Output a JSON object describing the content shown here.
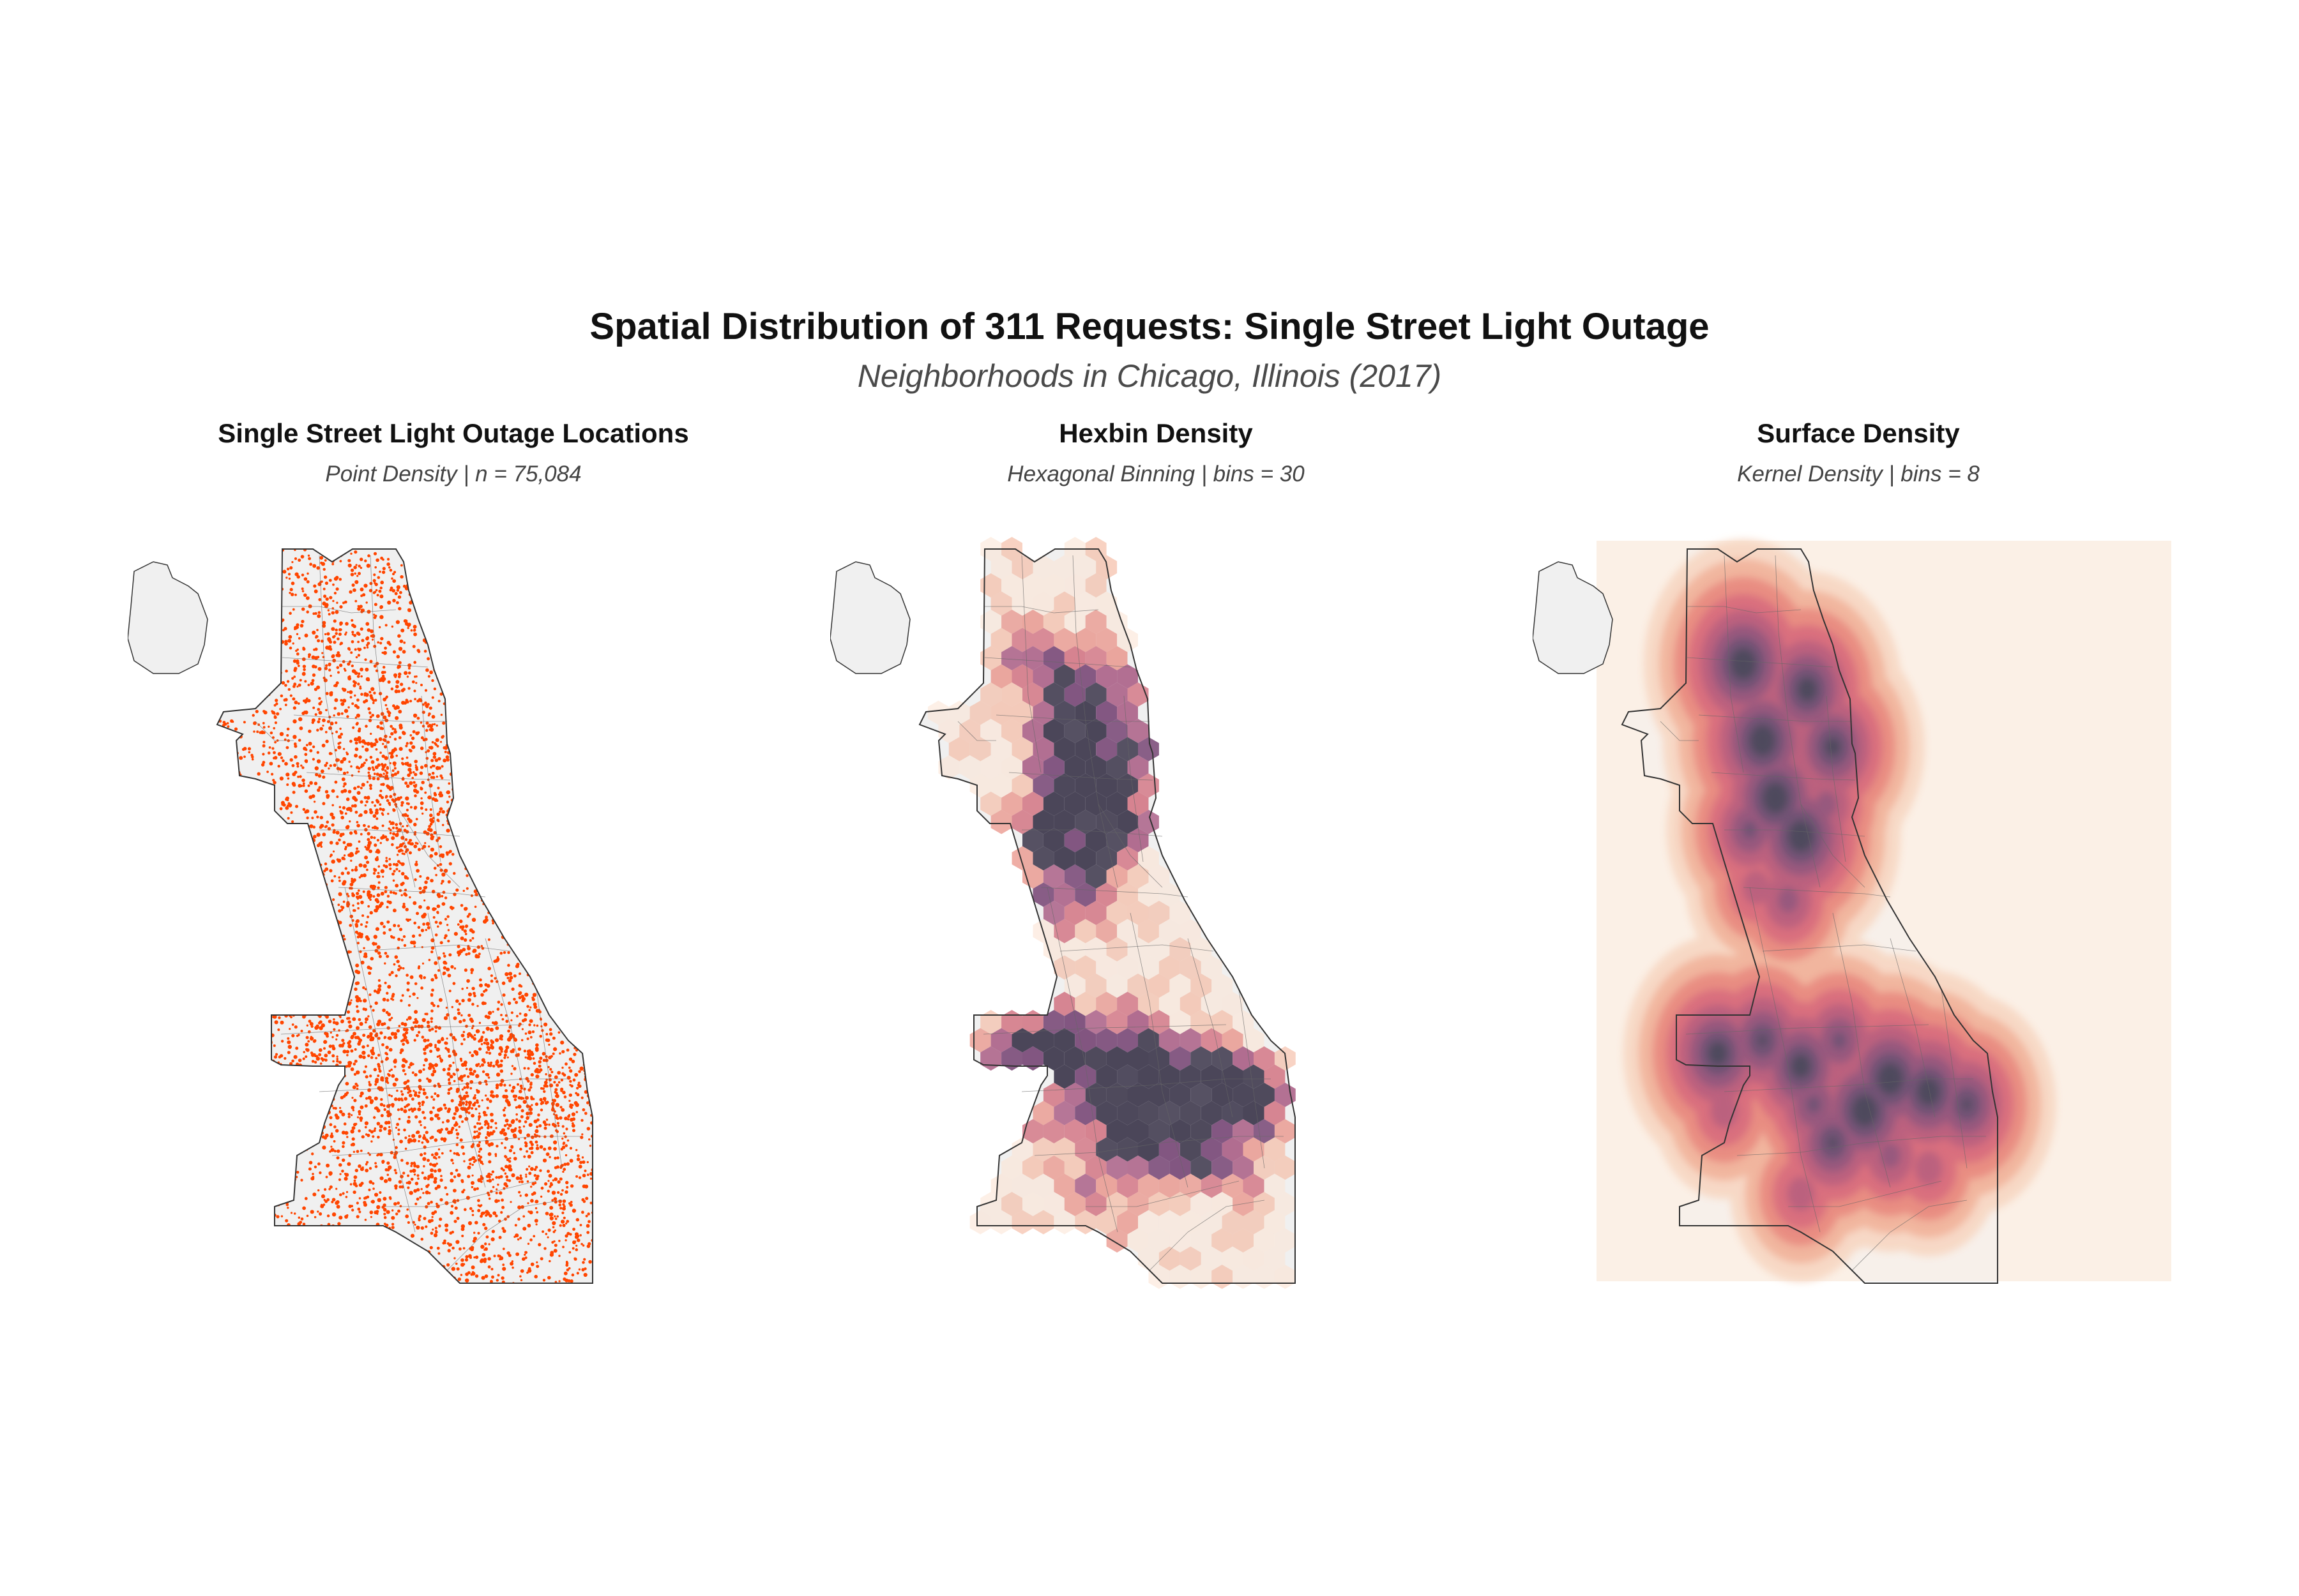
{
  "title": "Spatial Distribution of 311 Requests: Single Street Light Outage",
  "subtitle": "Neighborhoods in Chicago, Illinois (2017)",
  "panels": [
    {
      "title": "Single Street Light Outage Locations",
      "subtitle": "Point Density | n = 75,084",
      "method": "points",
      "point_color": "#ff4500"
    },
    {
      "title": "Hexbin Density",
      "subtitle": "Hexagonal Binning | bins = 30",
      "method": "hexbin",
      "palette": [
        "#fbe3d3",
        "#f4b8a0",
        "#e88b80",
        "#d06a7a",
        "#a85a82",
        "#7a4a78",
        "#4b4659"
      ]
    },
    {
      "title": "Surface Density",
      "subtitle": "Kernel Density | bins = 8",
      "method": "kde",
      "palette": [
        "#fbf0e6",
        "#f7d7c3",
        "#f1b39b",
        "#e88a80",
        "#d86d7e",
        "#b9607f",
        "#94587e",
        "#6f5374",
        "#4b4a5c"
      ]
    }
  ],
  "map": {
    "land_fill": "#f0f0f0",
    "boundary_stroke": "#333333"
  }
}
